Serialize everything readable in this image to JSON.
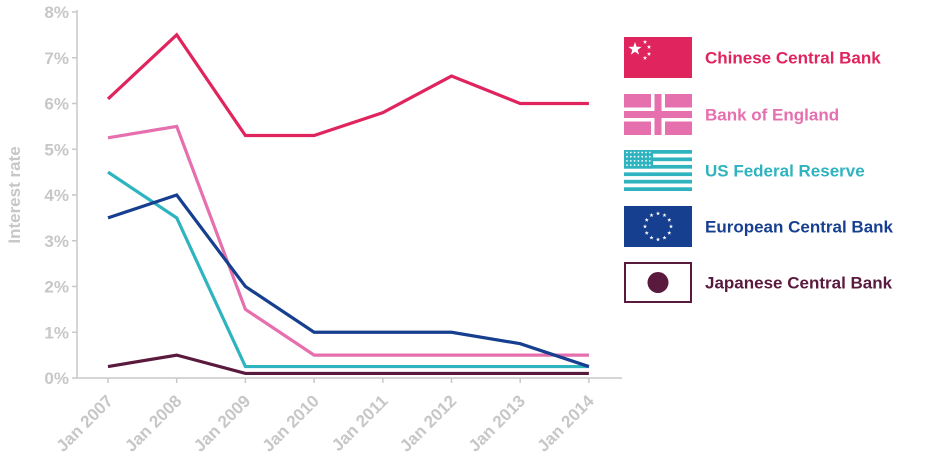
{
  "chart_data": {
    "type": "line",
    "ylabel": "Interest rate",
    "ylim": [
      0,
      8
    ],
    "y_ticks": [
      "0%",
      "1%",
      "2%",
      "3%",
      "4%",
      "5%",
      "6%",
      "7%",
      "8%"
    ],
    "categories": [
      "Jan 2007",
      "Jan 2008",
      "Jan 2009",
      "Jan 2010",
      "Jan 2011",
      "Jan 2012",
      "Jan 2013",
      "Jan 2014"
    ],
    "grid": false,
    "legend_position": "right",
    "series": [
      {
        "name": "Chinese Central Bank",
        "color": "#e0245e",
        "flag_icon": "china-flag-icon",
        "values": [
          6.1,
          7.5,
          5.3,
          5.3,
          5.8,
          6.6,
          6.0,
          6.0
        ]
      },
      {
        "name": "Bank of England",
        "color": "#e66fae",
        "flag_icon": "uk-flag-icon",
        "values": [
          5.25,
          5.5,
          1.5,
          0.5,
          0.5,
          0.5,
          0.5,
          0.5
        ]
      },
      {
        "name": "US Federal Reserve",
        "color": "#2fb3bf",
        "flag_icon": "us-flag-icon",
        "values": [
          4.5,
          3.5,
          0.25,
          0.25,
          0.25,
          0.25,
          0.25,
          0.25
        ]
      },
      {
        "name": "European Central Bank",
        "color": "#173f8f",
        "flag_icon": "eu-flag-icon",
        "values": [
          3.5,
          4.0,
          2.0,
          1.0,
          1.0,
          1.0,
          0.75,
          0.25
        ]
      },
      {
        "name": "Japanese Central Bank",
        "color": "#5a1a3e",
        "flag_icon": "japan-flag-icon",
        "values": [
          0.25,
          0.5,
          0.1,
          0.1,
          0.1,
          0.1,
          0.1,
          0.1
        ]
      }
    ]
  }
}
